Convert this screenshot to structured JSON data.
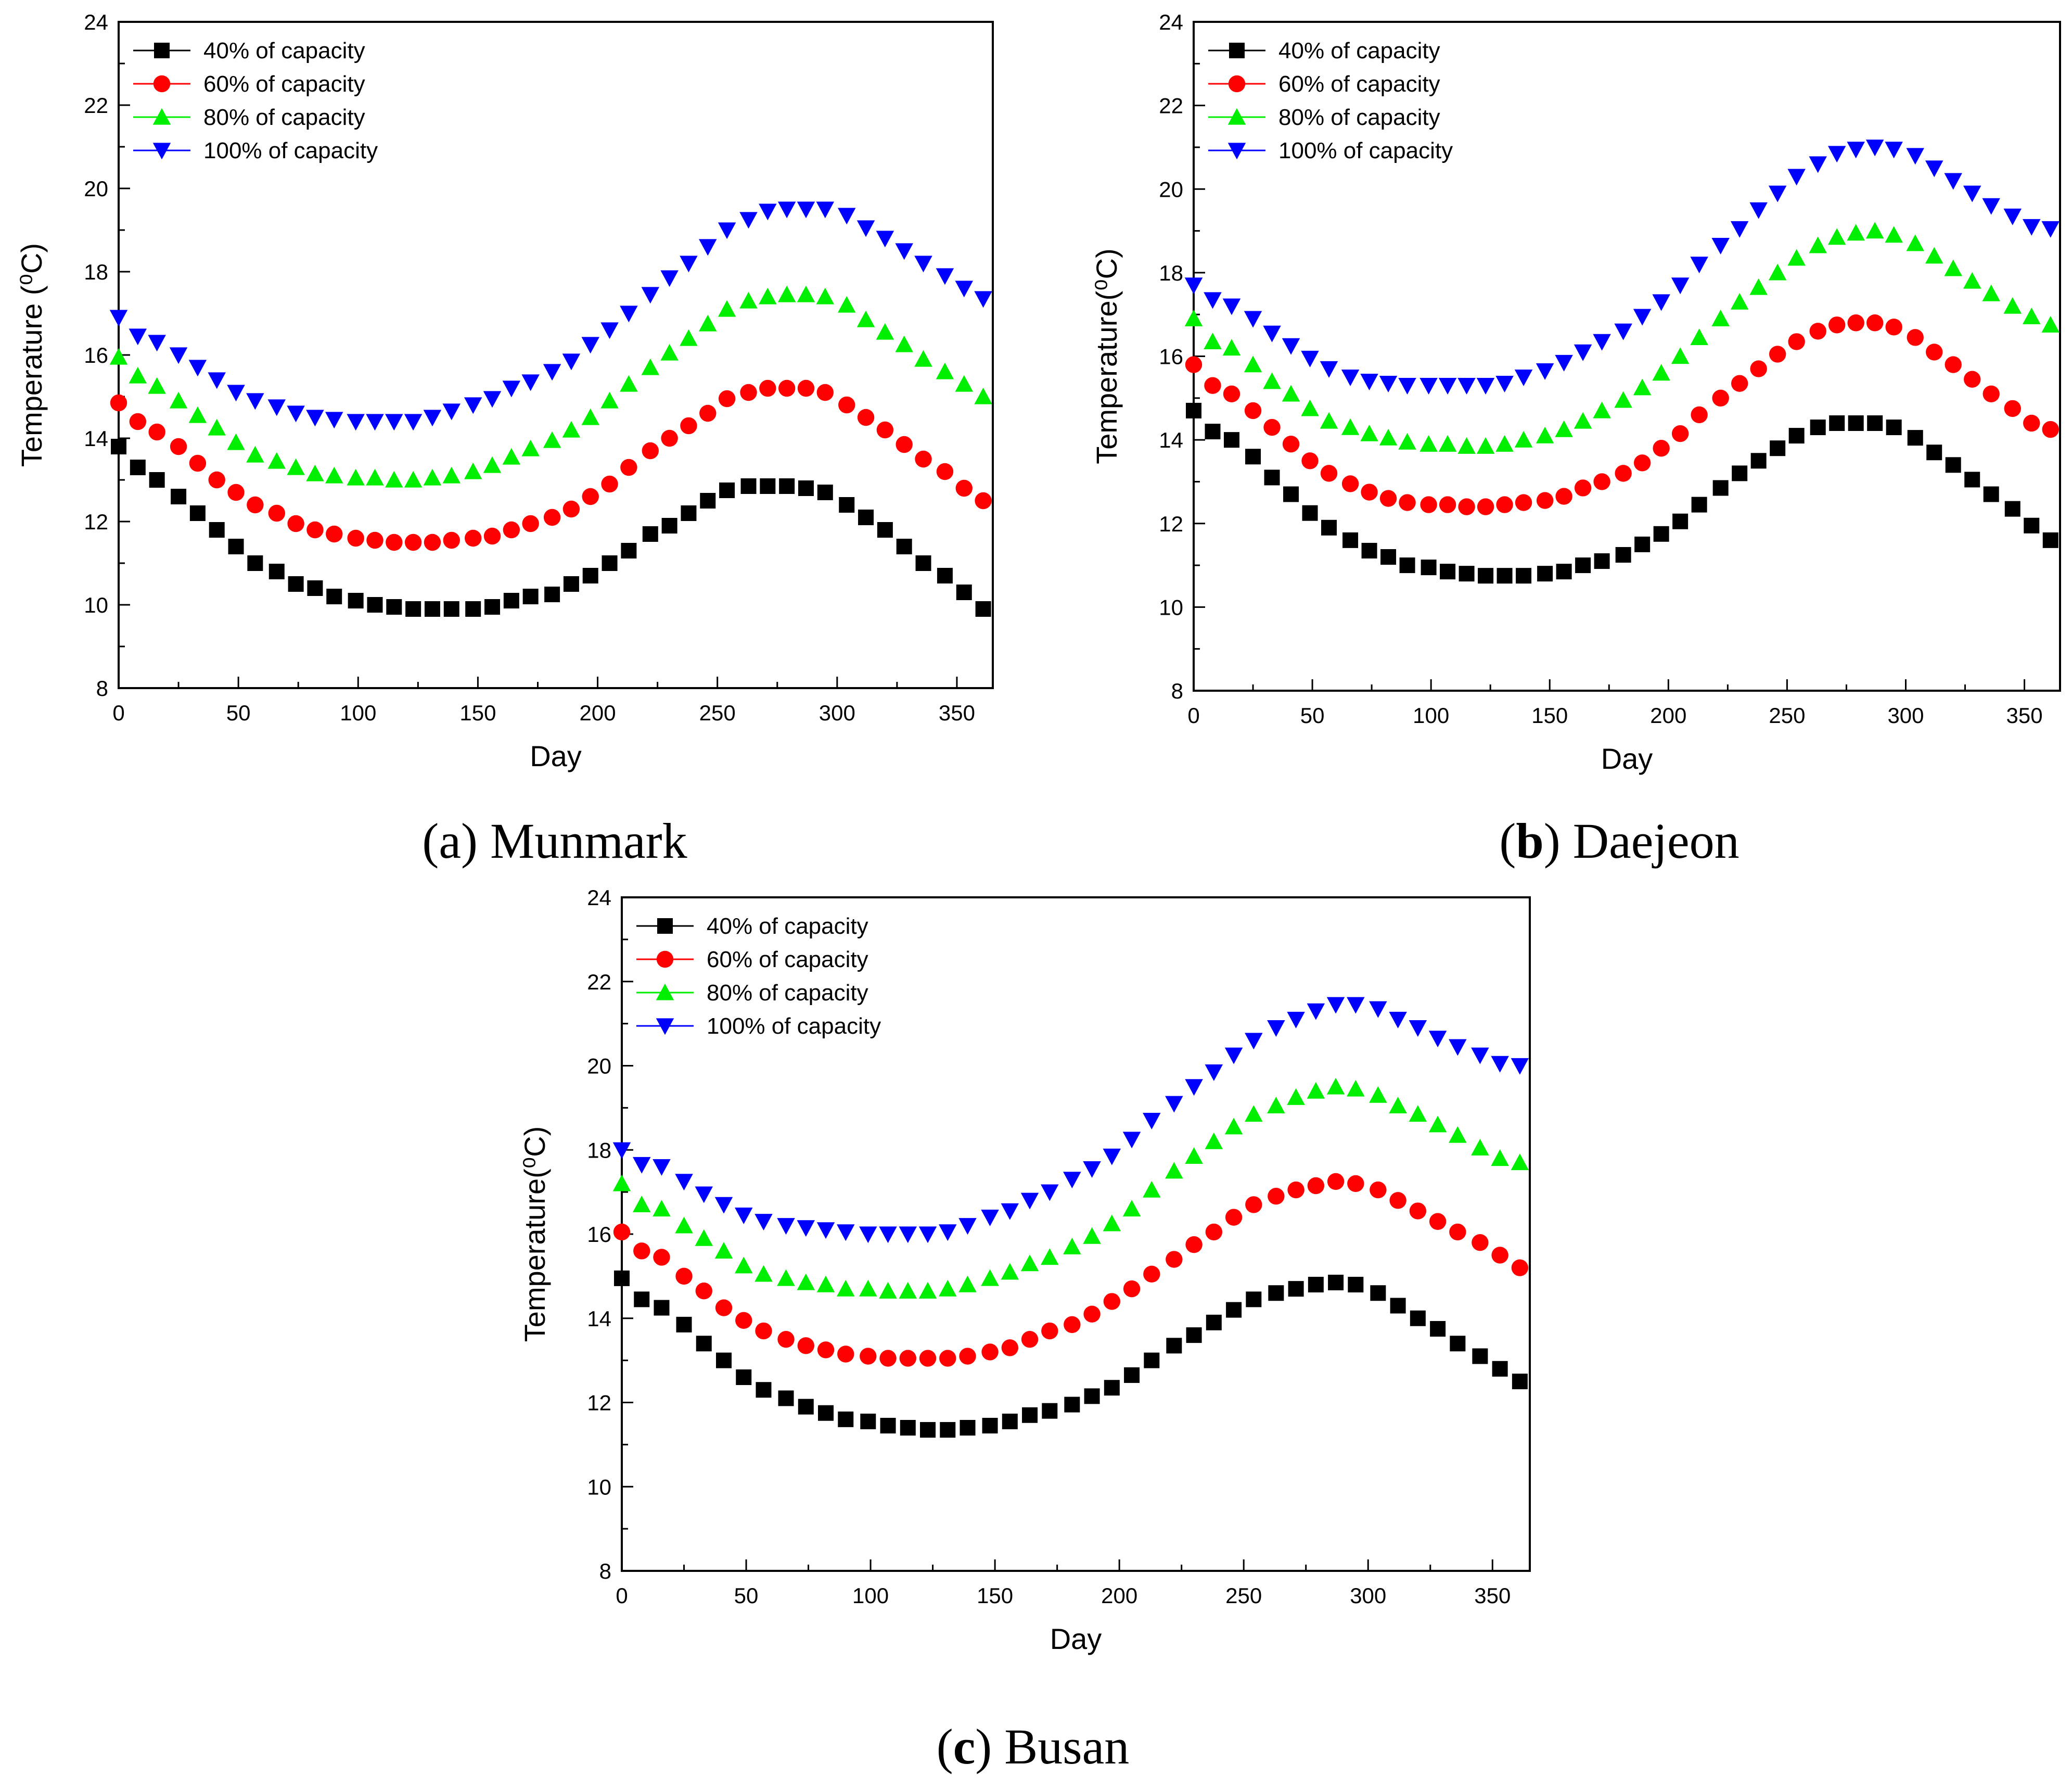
{
  "figure": {
    "captions": [
      {
        "prefix": "(a)",
        "name": "Munmark",
        "bold_prefix": false
      },
      {
        "prefix": "(b)",
        "name": "Daejeon",
        "bold_prefix": true
      },
      {
        "prefix": "(c)",
        "name": "Busan",
        "bold_prefix": true
      }
    ]
  },
  "chart_data": [
    {
      "type": "scatter",
      "title": "(a) Munmark",
      "xlabel": "Day",
      "ylabel": "Temperature (⁰C)",
      "xlim": [
        0,
        365
      ],
      "ylim": [
        8,
        24
      ],
      "xticks": [
        0,
        50,
        100,
        150,
        200,
        250,
        300,
        350
      ],
      "yticks": [
        8,
        10,
        12,
        14,
        16,
        18,
        20,
        22,
        24
      ],
      "legend_position": "top-left",
      "series": [
        {
          "name": "40% of capacity",
          "color": "#000000",
          "marker": "square",
          "base": 11.4,
          "amp": 1.5,
          "phase": 0,
          "min_day": 120,
          "max_day": 265
        },
        {
          "name": "60% of capacity",
          "color": "#ff0000",
          "marker": "circle",
          "base": 13.35,
          "amp": 1.85,
          "phase": 0,
          "min_day": 117,
          "max_day": 280
        },
        {
          "name": "80% of capacity",
          "color": "#00ee00",
          "marker": "triangle-up",
          "base": 15.2,
          "amp": 2.2,
          "phase": 0,
          "min_day": 115,
          "max_day": 283
        },
        {
          "name": "100% of capacity",
          "color": "#0000ff",
          "marker": "triangle-down",
          "base": 16.95,
          "amp": 2.55,
          "phase": 0,
          "min_day": 110,
          "max_day": 285
        }
      ],
      "points": {
        "x": [
          0,
          8,
          16,
          25,
          33,
          41,
          49,
          57,
          66,
          74,
          82,
          90,
          99,
          107,
          115,
          123,
          131,
          139,
          148,
          156,
          164,
          172,
          181,
          189,
          197,
          205,
          213,
          222,
          230,
          238,
          246,
          254,
          263,
          271,
          279,
          287,
          295,
          304,
          312,
          320,
          328,
          336,
          345,
          353,
          361
        ],
        "series_values": [
          [
            13.8,
            13.3,
            13.0,
            12.6,
            12.2,
            11.8,
            11.4,
            11.0,
            10.8,
            10.5,
            10.4,
            10.2,
            10.1,
            10.0,
            9.95,
            9.9,
            9.9,
            9.9,
            9.9,
            9.95,
            10.1,
            10.2,
            10.25,
            10.5,
            10.7,
            11.0,
            11.3,
            11.7,
            11.9,
            12.2,
            12.5,
            12.75,
            12.85,
            12.85,
            12.85,
            12.8,
            12.7,
            12.4,
            12.1,
            11.8,
            11.4,
            11.0,
            10.7,
            10.3,
            9.9
          ],
          [
            14.85,
            14.4,
            14.15,
            13.8,
            13.4,
            13.0,
            12.7,
            12.4,
            12.2,
            11.95,
            11.8,
            11.7,
            11.6,
            11.55,
            11.5,
            11.5,
            11.5,
            11.55,
            11.6,
            11.65,
            11.8,
            11.95,
            12.1,
            12.3,
            12.6,
            12.9,
            13.3,
            13.7,
            14.0,
            14.3,
            14.6,
            14.95,
            15.1,
            15.2,
            15.2,
            15.2,
            15.1,
            14.8,
            14.5,
            14.2,
            13.85,
            13.5,
            13.2,
            12.8,
            12.5
          ],
          [
            15.95,
            15.5,
            15.25,
            14.9,
            14.55,
            14.25,
            13.9,
            13.6,
            13.45,
            13.3,
            13.15,
            13.1,
            13.05,
            13.05,
            13.0,
            13.0,
            13.05,
            13.1,
            13.2,
            13.35,
            13.55,
            13.75,
            13.95,
            14.2,
            14.5,
            14.9,
            15.3,
            15.7,
            16.05,
            16.4,
            16.75,
            17.1,
            17.3,
            17.4,
            17.45,
            17.45,
            17.4,
            17.2,
            16.85,
            16.55,
            16.25,
            15.9,
            15.6,
            15.3,
            15.0
          ],
          [
            16.9,
            16.45,
            16.3,
            16.0,
            15.7,
            15.4,
            15.1,
            14.9,
            14.75,
            14.6,
            14.5,
            14.45,
            14.4,
            14.4,
            14.4,
            14.4,
            14.5,
            14.65,
            14.8,
            14.95,
            15.2,
            15.35,
            15.6,
            15.85,
            16.25,
            16.6,
            17.0,
            17.45,
            17.85,
            18.2,
            18.6,
            19.0,
            19.25,
            19.45,
            19.5,
            19.5,
            19.5,
            19.35,
            19.05,
            18.8,
            18.5,
            18.2,
            17.9,
            17.6,
            17.35
          ]
        ]
      }
    },
    {
      "type": "scatter",
      "title": "(b) Daejeon",
      "xlabel": "Day",
      "ylabel": "Temperature(⁰C)",
      "xlim": [
        0,
        365
      ],
      "ylim": [
        8,
        24
      ],
      "xticks": [
        0,
        50,
        100,
        150,
        200,
        250,
        300,
        350
      ],
      "yticks": [
        8,
        10,
        12,
        14,
        16,
        18,
        20,
        22,
        24
      ],
      "legend_position": "top-left",
      "series": [
        {
          "name": "40% of capacity",
          "color": "#000000",
          "marker": "square"
        },
        {
          "name": "60% of capacity",
          "color": "#ff0000",
          "marker": "circle"
        },
        {
          "name": "80% of capacity",
          "color": "#00ee00",
          "marker": "triangle-up"
        },
        {
          "name": "100% of capacity",
          "color": "#0000ff",
          "marker": "triangle-down"
        }
      ],
      "points": {
        "x": [
          0,
          8,
          16,
          25,
          33,
          41,
          49,
          57,
          66,
          74,
          82,
          90,
          99,
          107,
          115,
          123,
          131,
          139,
          148,
          156,
          164,
          172,
          181,
          189,
          197,
          205,
          213,
          222,
          230,
          238,
          246,
          254,
          263,
          271,
          279,
          287,
          295,
          304,
          312,
          320,
          328,
          336,
          345,
          353,
          361
        ],
        "series_values": [
          [
            14.7,
            14.2,
            14.0,
            13.6,
            13.1,
            12.7,
            12.25,
            11.9,
            11.6,
            11.35,
            11.2,
            11.0,
            10.95,
            10.85,
            10.8,
            10.75,
            10.75,
            10.75,
            10.8,
            10.85,
            11.0,
            11.1,
            11.25,
            11.5,
            11.75,
            12.05,
            12.45,
            12.85,
            13.2,
            13.5,
            13.8,
            14.1,
            14.3,
            14.4,
            14.4,
            14.4,
            14.3,
            14.05,
            13.7,
            13.4,
            13.05,
            12.7,
            12.35,
            11.95,
            11.6
          ],
          [
            15.8,
            15.3,
            15.1,
            14.7,
            14.3,
            13.9,
            13.5,
            13.2,
            12.95,
            12.75,
            12.6,
            12.5,
            12.45,
            12.45,
            12.4,
            12.4,
            12.45,
            12.5,
            12.55,
            12.65,
            12.85,
            13.0,
            13.2,
            13.45,
            13.8,
            14.15,
            14.6,
            15.0,
            15.35,
            15.7,
            16.05,
            16.35,
            16.6,
            16.75,
            16.8,
            16.8,
            16.7,
            16.45,
            16.1,
            15.8,
            15.45,
            15.1,
            14.75,
            14.4,
            14.25
          ],
          [
            16.9,
            16.35,
            16.2,
            15.8,
            15.4,
            15.1,
            14.75,
            14.45,
            14.3,
            14.15,
            14.05,
            13.95,
            13.9,
            13.9,
            13.85,
            13.85,
            13.9,
            14.0,
            14.1,
            14.25,
            14.45,
            14.7,
            14.95,
            15.25,
            15.6,
            16.0,
            16.45,
            16.9,
            17.3,
            17.65,
            18.0,
            18.35,
            18.65,
            18.85,
            18.95,
            19.0,
            18.9,
            18.7,
            18.4,
            18.1,
            17.8,
            17.5,
            17.2,
            16.95,
            16.75
          ],
          [
            17.7,
            17.35,
            17.2,
            16.9,
            16.55,
            16.25,
            15.95,
            15.7,
            15.5,
            15.4,
            15.35,
            15.3,
            15.3,
            15.3,
            15.3,
            15.3,
            15.35,
            15.5,
            15.65,
            15.85,
            16.1,
            16.35,
            16.6,
            16.95,
            17.3,
            17.7,
            18.2,
            18.65,
            19.05,
            19.5,
            19.9,
            20.3,
            20.6,
            20.85,
            20.95,
            21.0,
            20.95,
            20.8,
            20.5,
            20.2,
            19.9,
            19.6,
            19.35,
            19.1,
            19.05
          ]
        ]
      }
    },
    {
      "type": "scatter",
      "title": "(c) Busan",
      "xlabel": "Day",
      "ylabel": "Temperature(⁰C)",
      "xlim": [
        0,
        365
      ],
      "ylim": [
        8,
        24
      ],
      "xticks": [
        0,
        50,
        100,
        150,
        200,
        250,
        300,
        350
      ],
      "yticks": [
        8,
        10,
        12,
        14,
        16,
        18,
        20,
        22,
        24
      ],
      "legend_position": "top-left",
      "series": [
        {
          "name": "40% of capacity",
          "color": "#000000",
          "marker": "square"
        },
        {
          "name": "60% of capacity",
          "color": "#ff0000",
          "marker": "circle"
        },
        {
          "name": "80% of capacity",
          "color": "#00ee00",
          "marker": "triangle-up"
        },
        {
          "name": "100% of capacity",
          "color": "#0000ff",
          "marker": "triangle-down"
        }
      ],
      "points": {
        "x": [
          0,
          8,
          16,
          25,
          33,
          41,
          49,
          57,
          66,
          74,
          82,
          90,
          99,
          107,
          115,
          123,
          131,
          139,
          148,
          156,
          164,
          172,
          181,
          189,
          197,
          205,
          213,
          222,
          230,
          238,
          246,
          254,
          263,
          271,
          279,
          287,
          295,
          304,
          312,
          320,
          328,
          336,
          345,
          353,
          361
        ],
        "series_values": [
          [
            14.95,
            14.45,
            14.25,
            13.85,
            13.4,
            13.0,
            12.6,
            12.3,
            12.1,
            11.9,
            11.75,
            11.6,
            11.55,
            11.45,
            11.4,
            11.35,
            11.35,
            11.4,
            11.45,
            11.55,
            11.7,
            11.8,
            11.95,
            12.15,
            12.35,
            12.65,
            13.0,
            13.35,
            13.6,
            13.9,
            14.2,
            14.45,
            14.6,
            14.7,
            14.8,
            14.85,
            14.8,
            14.6,
            14.3,
            14.0,
            13.75,
            13.4,
            13.1,
            12.8,
            12.5
          ],
          [
            16.05,
            15.6,
            15.45,
            15.0,
            14.65,
            14.25,
            13.95,
            13.7,
            13.5,
            13.35,
            13.25,
            13.15,
            13.1,
            13.05,
            13.05,
            13.05,
            13.05,
            13.1,
            13.2,
            13.3,
            13.5,
            13.7,
            13.85,
            14.1,
            14.4,
            14.7,
            15.05,
            15.4,
            15.75,
            16.05,
            16.4,
            16.7,
            16.9,
            17.05,
            17.15,
            17.25,
            17.2,
            17.05,
            16.8,
            16.55,
            16.3,
            16.05,
            15.8,
            15.5,
            15.2
          ],
          [
            17.2,
            16.7,
            16.6,
            16.2,
            15.9,
            15.6,
            15.25,
            15.05,
            14.95,
            14.85,
            14.8,
            14.7,
            14.7,
            14.65,
            14.65,
            14.65,
            14.7,
            14.8,
            14.95,
            15.1,
            15.3,
            15.45,
            15.7,
            15.95,
            16.25,
            16.6,
            17.05,
            17.5,
            17.85,
            18.2,
            18.55,
            18.85,
            19.05,
            19.25,
            19.4,
            19.5,
            19.45,
            19.3,
            19.05,
            18.85,
            18.6,
            18.35,
            18.05,
            17.8,
            17.7
          ],
          [
            18.0,
            17.65,
            17.6,
            17.25,
            16.95,
            16.7,
            16.45,
            16.3,
            16.2,
            16.15,
            16.1,
            16.05,
            16.0,
            16.0,
            16.0,
            16.0,
            16.05,
            16.2,
            16.4,
            16.55,
            16.8,
            17.0,
            17.3,
            17.55,
            17.85,
            18.25,
            18.7,
            19.1,
            19.5,
            19.85,
            20.25,
            20.6,
            20.9,
            21.1,
            21.3,
            21.45,
            21.45,
            21.35,
            21.1,
            20.9,
            20.65,
            20.45,
            20.25,
            20.05,
            20.0
          ]
        ]
      }
    }
  ]
}
